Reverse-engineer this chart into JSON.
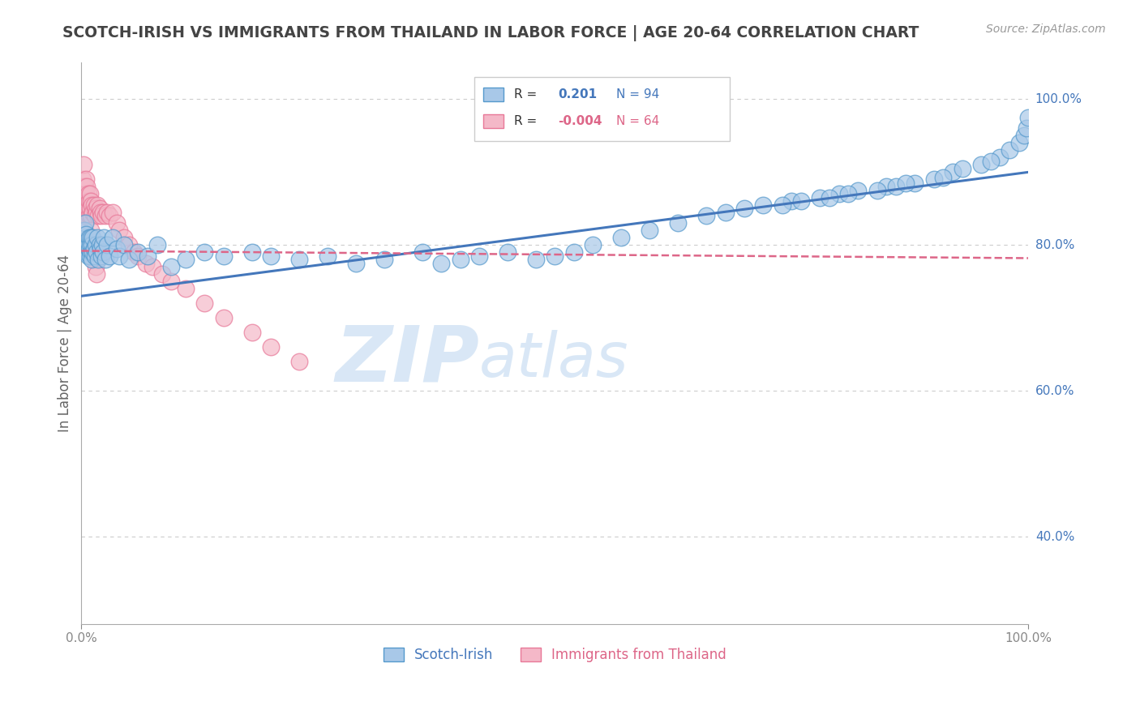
{
  "title": "SCOTCH-IRISH VS IMMIGRANTS FROM THAILAND IN LABOR FORCE | AGE 20-64 CORRELATION CHART",
  "source": "Source: ZipAtlas.com",
  "ylabel": "In Labor Force | Age 20-64",
  "xlim": [
    0.0,
    1.0
  ],
  "ylim": [
    0.28,
    1.05
  ],
  "ytick_labels_right": [
    "100.0%",
    "80.0%",
    "60.0%",
    "40.0%"
  ],
  "ytick_vals_right": [
    1.0,
    0.8,
    0.6,
    0.4
  ],
  "legend_r_blue_val": "0.201",
  "legend_n_blue": "N = 94",
  "legend_r_pink_val": "-0.004",
  "legend_n_pink": "N = 64",
  "blue_color": "#a8c8e8",
  "pink_color": "#f4b8c8",
  "blue_edge_color": "#5599cc",
  "pink_edge_color": "#e87898",
  "blue_line_color": "#4477bb",
  "pink_line_color": "#dd6688",
  "watermark_color": "#d0dff0",
  "background_color": "#ffffff",
  "title_color": "#444444",
  "scotch_irish_x": [
    0.002,
    0.003,
    0.004,
    0.004,
    0.005,
    0.005,
    0.006,
    0.006,
    0.007,
    0.007,
    0.008,
    0.008,
    0.009,
    0.009,
    0.01,
    0.01,
    0.011,
    0.011,
    0.012,
    0.012,
    0.013,
    0.014,
    0.015,
    0.016,
    0.017,
    0.018,
    0.019,
    0.02,
    0.021,
    0.022,
    0.023,
    0.024,
    0.025,
    0.027,
    0.03,
    0.033,
    0.037,
    0.04,
    0.045,
    0.05,
    0.06,
    0.07,
    0.08,
    0.095,
    0.11,
    0.13,
    0.15,
    0.18,
    0.2,
    0.23,
    0.26,
    0.29,
    0.32,
    0.36,
    0.38,
    0.4,
    0.42,
    0.45,
    0.48,
    0.5,
    0.52,
    0.54,
    0.57,
    0.6,
    0.63,
    0.66,
    0.68,
    0.72,
    0.75,
    0.78,
    0.8,
    0.82,
    0.85,
    0.88,
    0.9,
    0.92,
    0.95,
    0.97,
    0.98,
    0.99,
    0.995,
    0.998,
    1.0,
    0.7,
    0.74,
    0.76,
    0.79,
    0.81,
    0.84,
    0.86,
    0.87,
    0.91,
    0.93,
    0.96
  ],
  "scotch_irish_y": [
    0.81,
    0.82,
    0.795,
    0.83,
    0.8,
    0.815,
    0.79,
    0.805,
    0.785,
    0.8,
    0.81,
    0.795,
    0.785,
    0.8,
    0.79,
    0.81,
    0.78,
    0.8,
    0.79,
    0.81,
    0.795,
    0.785,
    0.8,
    0.79,
    0.81,
    0.78,
    0.8,
    0.795,
    0.785,
    0.8,
    0.79,
    0.81,
    0.78,
    0.8,
    0.785,
    0.81,
    0.795,
    0.785,
    0.8,
    0.78,
    0.79,
    0.785,
    0.8,
    0.77,
    0.78,
    0.79,
    0.785,
    0.79,
    0.785,
    0.78,
    0.785,
    0.775,
    0.78,
    0.79,
    0.775,
    0.78,
    0.785,
    0.79,
    0.78,
    0.785,
    0.79,
    0.8,
    0.81,
    0.82,
    0.83,
    0.84,
    0.845,
    0.855,
    0.86,
    0.865,
    0.87,
    0.875,
    0.88,
    0.885,
    0.89,
    0.9,
    0.91,
    0.92,
    0.93,
    0.94,
    0.95,
    0.96,
    0.975,
    0.85,
    0.855,
    0.86,
    0.865,
    0.87,
    0.875,
    0.88,
    0.885,
    0.893,
    0.905,
    0.915
  ],
  "thailand_x": [
    0.001,
    0.001,
    0.002,
    0.002,
    0.002,
    0.003,
    0.003,
    0.003,
    0.004,
    0.004,
    0.004,
    0.005,
    0.005,
    0.005,
    0.006,
    0.006,
    0.006,
    0.007,
    0.007,
    0.008,
    0.008,
    0.009,
    0.009,
    0.01,
    0.01,
    0.011,
    0.012,
    0.013,
    0.014,
    0.015,
    0.016,
    0.017,
    0.018,
    0.019,
    0.02,
    0.021,
    0.023,
    0.025,
    0.027,
    0.03,
    0.033,
    0.037,
    0.04,
    0.045,
    0.05,
    0.055,
    0.06,
    0.068,
    0.075,
    0.085,
    0.095,
    0.11,
    0.13,
    0.15,
    0.18,
    0.2,
    0.23,
    0.01,
    0.011,
    0.012,
    0.013,
    0.014,
    0.015,
    0.016
  ],
  "thailand_y": [
    0.89,
    0.86,
    0.88,
    0.84,
    0.91,
    0.87,
    0.85,
    0.83,
    0.88,
    0.86,
    0.84,
    0.87,
    0.85,
    0.89,
    0.84,
    0.86,
    0.88,
    0.85,
    0.87,
    0.86,
    0.84,
    0.85,
    0.87,
    0.86,
    0.84,
    0.855,
    0.845,
    0.855,
    0.84,
    0.85,
    0.845,
    0.855,
    0.84,
    0.85,
    0.845,
    0.84,
    0.845,
    0.84,
    0.845,
    0.84,
    0.845,
    0.83,
    0.82,
    0.81,
    0.8,
    0.79,
    0.785,
    0.775,
    0.77,
    0.76,
    0.75,
    0.74,
    0.72,
    0.7,
    0.68,
    0.66,
    0.64,
    0.82,
    0.81,
    0.8,
    0.79,
    0.78,
    0.77,
    0.76
  ]
}
